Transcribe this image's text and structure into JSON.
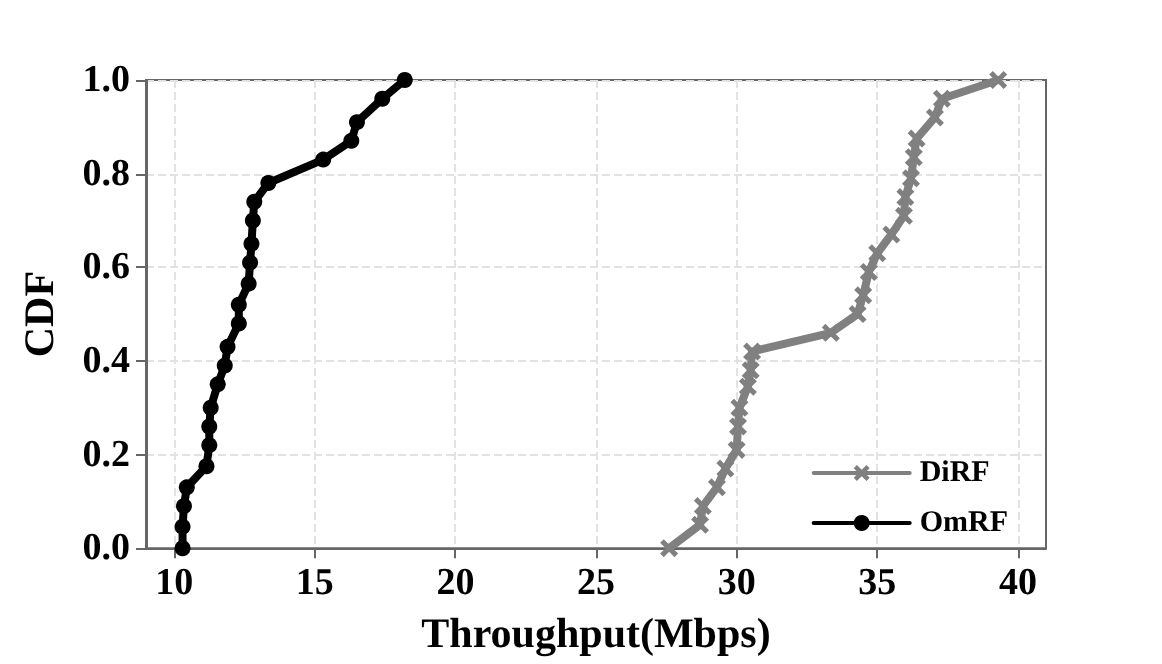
{
  "chart_data": {
    "type": "line",
    "xlabel": "Throughput(Mbps)",
    "ylabel": "CDF",
    "xlim": [
      9,
      41
    ],
    "ylim": [
      0,
      1
    ],
    "xticks": [
      10,
      15,
      20,
      25,
      30,
      35,
      40
    ],
    "yticks": [
      {
        "value": 0,
        "label": "0.0"
      },
      {
        "value": 0.2,
        "label": "0.2"
      },
      {
        "value": 0.4,
        "label": "0.4"
      },
      {
        "value": 0.6,
        "label": "0.6"
      },
      {
        "value": 0.8,
        "label": "0.8"
      },
      {
        "value": 1,
        "label": "1.0"
      }
    ],
    "grid": true,
    "legend": "bottom right",
    "line_style": "solid",
    "series": [
      {
        "name": "DiRF",
        "color": "#808080",
        "marker": "cross",
        "x": [
          27.6,
          28.7,
          28.8,
          29.3,
          29.6,
          30,
          30.05,
          30.1,
          30.4,
          30.5,
          30.55,
          33.35,
          34.3,
          34.5,
          34.7,
          35.0,
          35.5,
          35.95,
          36.0,
          36.2,
          36.3,
          36.4,
          37.05,
          37.3,
          39.3
        ],
        "values": [
          0,
          0.05,
          0.09,
          0.13,
          0.17,
          0.21,
          0.26,
          0.3,
          0.345,
          0.38,
          0.42,
          0.46,
          0.5,
          0.54,
          0.59,
          0.63,
          0.67,
          0.71,
          0.75,
          0.79,
          0.835,
          0.875,
          0.92,
          0.96,
          1.0
        ]
      },
      {
        "name": "OmRF",
        "color": "#000000",
        "marker": "circle",
        "x": [
          10.3,
          10.3,
          10.35,
          10.45,
          11.15,
          11.25,
          11.25,
          11.3,
          11.55,
          11.8,
          11.9,
          12.3,
          12.3,
          12.65,
          12.7,
          12.75,
          12.8,
          12.85,
          13.35,
          15.3,
          16.3,
          16.5,
          17.4,
          18.2
        ],
        "values": [
          0,
          0.046,
          0.09,
          0.13,
          0.175,
          0.22,
          0.26,
          0.3,
          0.35,
          0.39,
          0.43,
          0.48,
          0.52,
          0.565,
          0.61,
          0.65,
          0.7,
          0.74,
          0.78,
          0.83,
          0.87,
          0.91,
          0.96,
          1.0
        ]
      }
    ]
  }
}
